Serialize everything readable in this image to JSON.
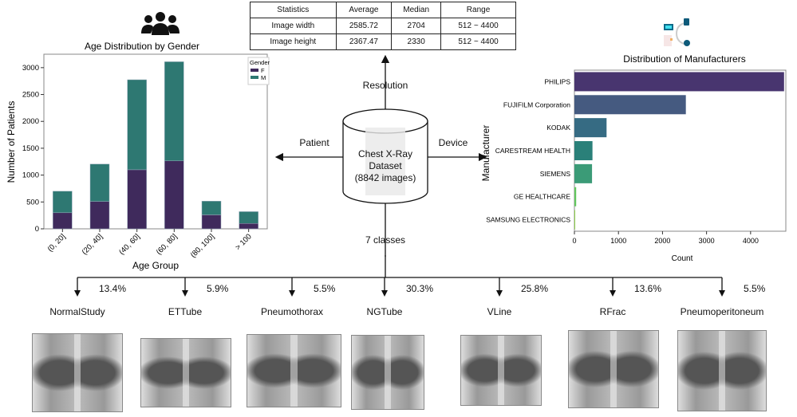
{
  "stats_table": {
    "header": [
      "Statistics",
      "Average",
      "Median",
      "Range"
    ],
    "rows": [
      [
        "Image width",
        "2585.72",
        "2704",
        "512 ~ 4400"
      ],
      [
        "Image height",
        "2367.47",
        "2330",
        "512 ~ 4400"
      ]
    ]
  },
  "center": {
    "line1": "Chest X-Ray",
    "line2": "Dataset",
    "line3": "(8842 images)",
    "top": "Resolution",
    "left": "Patient",
    "right": "Device",
    "bottom": "7 classes"
  },
  "icons": {
    "patient": "people-group-icon",
    "device": "medical-device-icon",
    "dataset": "database-cylinder-icon"
  },
  "classes": [
    {
      "name": "NormalStudy",
      "pct": "13.4%"
    },
    {
      "name": "ETTube",
      "pct": "5.9%"
    },
    {
      "name": "Pneumothorax",
      "pct": "5.5%"
    },
    {
      "name": "NGTube",
      "pct": "30.3%"
    },
    {
      "name": "VLine",
      "pct": "25.8%"
    },
    {
      "name": "RFrac",
      "pct": "13.6%"
    },
    {
      "name": "Pneumoperitoneum",
      "pct": "5.5%"
    }
  ],
  "chart_data": [
    {
      "type": "bar",
      "stacked": true,
      "title": "Age Distribution by Gender",
      "xlabel": "Age Group",
      "ylabel": "Number of Patients",
      "categories": [
        "(0, 20]",
        "(20, 40]",
        "(40, 60]",
        "(60, 80]",
        "(80, 100]",
        "> 100"
      ],
      "series": [
        {
          "name": "F",
          "values": [
            300,
            510,
            1100,
            1265,
            260,
            100
          ],
          "color": "#3f2a5c"
        },
        {
          "name": "M",
          "values": [
            400,
            695,
            1675,
            1845,
            255,
            220
          ],
          "color": "#2e7872"
        }
      ],
      "ylim": [
        0,
        3250
      ],
      "yticks": [
        0,
        500,
        1000,
        1500,
        2000,
        2500,
        3000
      ],
      "legend_title": "Gender",
      "legend": "top-right",
      "grid": false
    },
    {
      "type": "bar",
      "orientation": "horizontal",
      "title": "Distribution of Manufacturers",
      "xlabel": "Count",
      "ylabel": "Manufacturer",
      "categories": [
        "PHILIPS",
        "FUJIFILM Corporation",
        "KODAK",
        "CARESTREAM HEALTH",
        "SIEMENS",
        "GE HEALTHCARE",
        "SAMSUNG ELECTRONICS"
      ],
      "values": [
        4760,
        2530,
        730,
        410,
        400,
        40,
        5
      ],
      "colors": [
        "#48356f",
        "#455a80",
        "#366b83",
        "#2a8079",
        "#3b9b77",
        "#62c65e",
        "#8fd24a"
      ],
      "xlim": [
        0,
        4800
      ],
      "xticks": [
        0,
        1000,
        2000,
        3000,
        4000
      ],
      "grid": false
    }
  ]
}
